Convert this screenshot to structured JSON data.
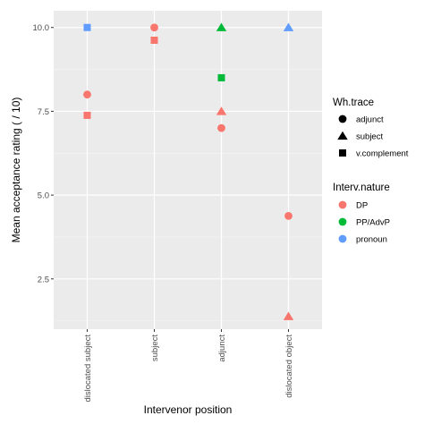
{
  "chart_data": {
    "type": "scatter",
    "title": "",
    "xlabel": "Intervenor position",
    "ylabel": "Mean acceptance rating ( / 10)",
    "categories": [
      "dislocated subject",
      "subject",
      "adjunct",
      "dislocated object"
    ],
    "yticks": [
      "2.5",
      "5.0",
      "7.5",
      "10.0"
    ],
    "ylim": [
      1.0,
      10.5
    ],
    "grid": true,
    "legend_position": "right",
    "shape_legend": {
      "title": "Wh.trace",
      "items": [
        {
          "label": "adjunct",
          "shape": "circle"
        },
        {
          "label": "subject",
          "shape": "triangle"
        },
        {
          "label": "v.complement",
          "shape": "square"
        }
      ]
    },
    "color_legend": {
      "title": "Interv.nature",
      "items": [
        {
          "label": "DP",
          "color": "#F8766D"
        },
        {
          "label": "PP/AdvP",
          "color": "#00BA38"
        },
        {
          "label": "pronoun",
          "color": "#619CFF"
        }
      ]
    },
    "points": [
      {
        "x": "dislocated subject",
        "y": 10.0,
        "shape": "square",
        "color": "#619CFF"
      },
      {
        "x": "dislocated subject",
        "y": 8.0,
        "shape": "circle",
        "color": "#F8766D"
      },
      {
        "x": "dislocated subject",
        "y": 7.38,
        "shape": "square",
        "color": "#F8766D"
      },
      {
        "x": "subject",
        "y": 10.0,
        "shape": "circle",
        "color": "#F8766D"
      },
      {
        "x": "subject",
        "y": 9.62,
        "shape": "square",
        "color": "#F8766D"
      },
      {
        "x": "adjunct",
        "y": 10.0,
        "shape": "triangle",
        "color": "#00BA38"
      },
      {
        "x": "adjunct",
        "y": 8.5,
        "shape": "square",
        "color": "#00BA38"
      },
      {
        "x": "adjunct",
        "y": 7.5,
        "shape": "triangle",
        "color": "#F8766D"
      },
      {
        "x": "adjunct",
        "y": 7.0,
        "shape": "circle",
        "color": "#F8766D"
      },
      {
        "x": "dislocated object",
        "y": 10.0,
        "shape": "triangle",
        "color": "#619CFF"
      },
      {
        "x": "dislocated object",
        "y": 4.38,
        "shape": "circle",
        "color": "#F8766D"
      },
      {
        "x": "dislocated object",
        "y": 1.38,
        "shape": "triangle",
        "color": "#F8766D"
      }
    ]
  }
}
